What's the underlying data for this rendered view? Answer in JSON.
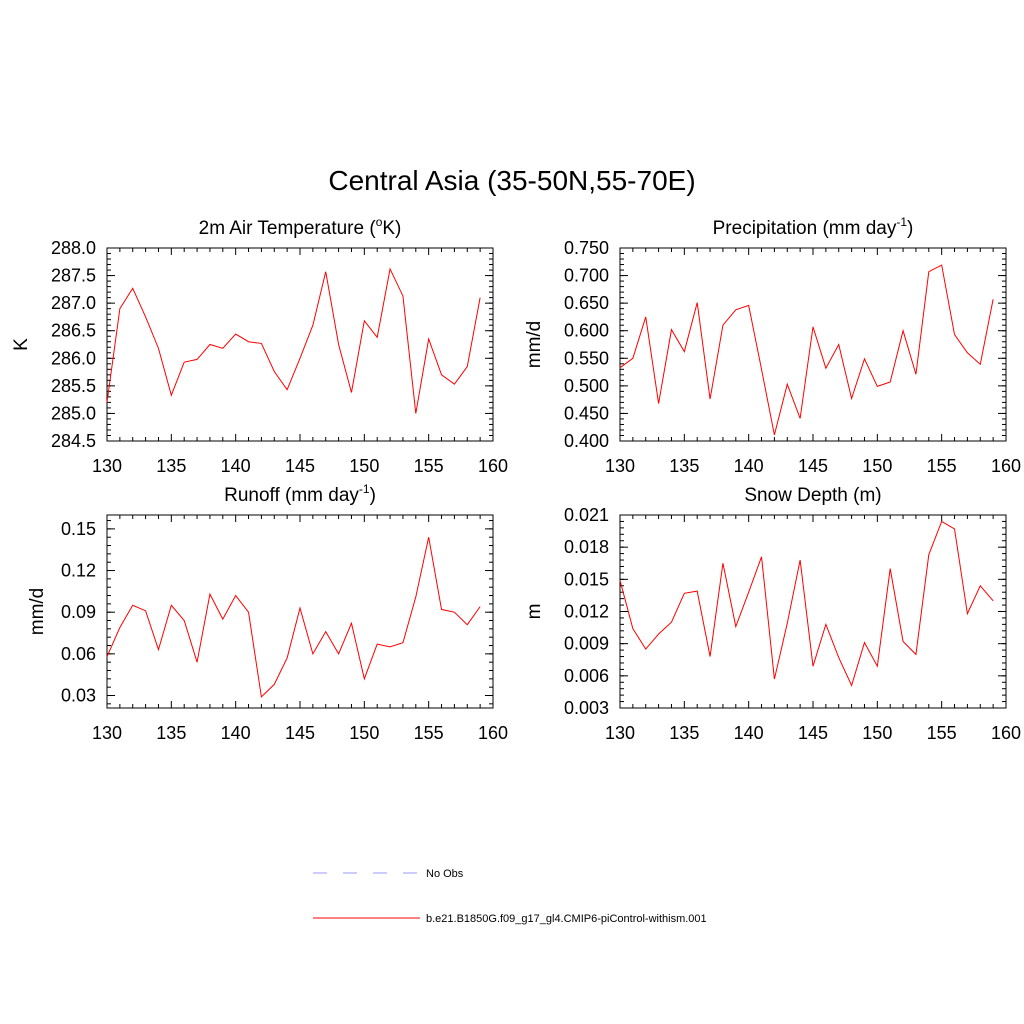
{
  "title": "Central Asia (35-50N,55-70E)",
  "chart_data": [
    {
      "type": "line",
      "title": "2m Air Temperature (",
      "title_sup": "o",
      "title_after": "K)",
      "ylabel": "K",
      "xlim": [
        130,
        160
      ],
      "ylim": [
        284.5,
        288.0
      ],
      "xticks": [
        "130",
        "135",
        "140",
        "145",
        "150",
        "155",
        "160"
      ],
      "yticks": [
        "284.5",
        "285.0",
        "285.5",
        "286.0",
        "286.5",
        "287.0",
        "287.5",
        "288.0"
      ],
      "x": [
        130,
        131,
        132,
        133,
        134,
        135,
        136,
        137,
        138,
        139,
        140,
        141,
        142,
        143,
        144,
        145,
        146,
        147,
        148,
        149,
        150,
        151,
        152,
        153,
        154,
        155,
        156,
        157,
        158,
        159
      ],
      "series": [
        {
          "values": [
            285.2,
            286.9,
            287.27,
            286.75,
            286.18,
            285.33,
            285.93,
            285.98,
            286.25,
            286.18,
            286.44,
            286.3,
            286.27,
            285.76,
            285.43,
            286.0,
            286.6,
            287.57,
            286.25,
            285.38,
            286.68,
            286.38,
            287.62,
            287.13,
            285.0,
            286.35,
            285.7,
            285.53,
            285.85,
            287.1
          ],
          "color": "#ff0000"
        }
      ]
    },
    {
      "type": "line",
      "title": "Precipitation (mm day",
      "title_sup": "-1",
      "title_after": ")",
      "ylabel": "mm/d",
      "xlim": [
        130,
        160
      ],
      "ylim": [
        0.4,
        0.75
      ],
      "xticks": [
        "130",
        "135",
        "140",
        "145",
        "150",
        "155",
        "160"
      ],
      "yticks": [
        "0.400",
        "0.450",
        "0.500",
        "0.550",
        "0.600",
        "0.650",
        "0.700",
        "0.750"
      ],
      "x": [
        130,
        131,
        132,
        133,
        134,
        135,
        136,
        137,
        138,
        139,
        140,
        141,
        142,
        143,
        144,
        145,
        146,
        147,
        148,
        149,
        150,
        151,
        152,
        153,
        154,
        155,
        156,
        157,
        158,
        159
      ],
      "series": [
        {
          "values": [
            0.533,
            0.55,
            0.625,
            0.468,
            0.602,
            0.562,
            0.651,
            0.476,
            0.61,
            0.638,
            0.646,
            0.53,
            0.411,
            0.503,
            0.441,
            0.607,
            0.532,
            0.575,
            0.477,
            0.549,
            0.499,
            0.507,
            0.6,
            0.521,
            0.707,
            0.719,
            0.593,
            0.56,
            0.539,
            0.657
          ],
          "color": "#ff0000"
        }
      ]
    },
    {
      "type": "line",
      "title": "Runoff (mm day",
      "title_sup": "-1",
      "title_after": ")",
      "ylabel": "mm/d",
      "xlim": [
        130,
        160
      ],
      "ylim": [
        0.021,
        0.16
      ],
      "xticks": [
        "130",
        "135",
        "140",
        "145",
        "150",
        "155",
        "160"
      ],
      "yticks": [
        "0.03",
        "0.06",
        "0.09",
        "0.12",
        "0.15"
      ],
      "ytick_values": [
        0.03,
        0.06,
        0.09,
        0.12,
        0.15
      ],
      "x": [
        130,
        131,
        132,
        133,
        134,
        135,
        136,
        137,
        138,
        139,
        140,
        141,
        142,
        143,
        144,
        145,
        146,
        147,
        148,
        149,
        150,
        151,
        152,
        153,
        154,
        155,
        156,
        157,
        158,
        159
      ],
      "series": [
        {
          "values": [
            0.058,
            0.079,
            0.095,
            0.091,
            0.063,
            0.095,
            0.084,
            0.054,
            0.103,
            0.085,
            0.102,
            0.09,
            0.029,
            0.038,
            0.057,
            0.093,
            0.06,
            0.076,
            0.06,
            0.082,
            0.042,
            0.067,
            0.065,
            0.068,
            0.101,
            0.144,
            0.092,
            0.09,
            0.081,
            0.094
          ],
          "color": "#ff0000"
        }
      ]
    },
    {
      "type": "line",
      "title": "Snow Depth (m)",
      "title_sup": "",
      "title_after": "",
      "ylabel": "m",
      "xlim": [
        130,
        160
      ],
      "ylim": [
        0.003,
        0.021
      ],
      "xticks": [
        "130",
        "135",
        "140",
        "145",
        "150",
        "155",
        "160"
      ],
      "yticks": [
        "0.003",
        "0.006",
        "0.009",
        "0.012",
        "0.015",
        "0.018",
        "0.021"
      ],
      "x": [
        130,
        131,
        132,
        133,
        134,
        135,
        136,
        137,
        138,
        139,
        140,
        141,
        142,
        143,
        144,
        145,
        146,
        147,
        148,
        149,
        150,
        151,
        152,
        153,
        154,
        155,
        156,
        157,
        158,
        159
      ],
      "series": [
        {
          "values": [
            0.0149,
            0.0104,
            0.0085,
            0.0099,
            0.011,
            0.0137,
            0.0139,
            0.0078,
            0.0165,
            0.0106,
            0.0138,
            0.0171,
            0.0057,
            0.0109,
            0.0168,
            0.0069,
            0.0108,
            0.0077,
            0.0051,
            0.0091,
            0.0069,
            0.016,
            0.0092,
            0.008,
            0.0173,
            0.0204,
            0.0197,
            0.0118,
            0.0144,
            0.013
          ],
          "color": "#ff0000"
        }
      ]
    }
  ],
  "legend": [
    {
      "label": "No Obs",
      "color": "#9999ff",
      "dash": true
    },
    {
      "label": "b.e21.B1850G.f09_g17_gl4.CMIP6-piControl-withism.001",
      "color": "#ff0000",
      "dash": false
    }
  ]
}
